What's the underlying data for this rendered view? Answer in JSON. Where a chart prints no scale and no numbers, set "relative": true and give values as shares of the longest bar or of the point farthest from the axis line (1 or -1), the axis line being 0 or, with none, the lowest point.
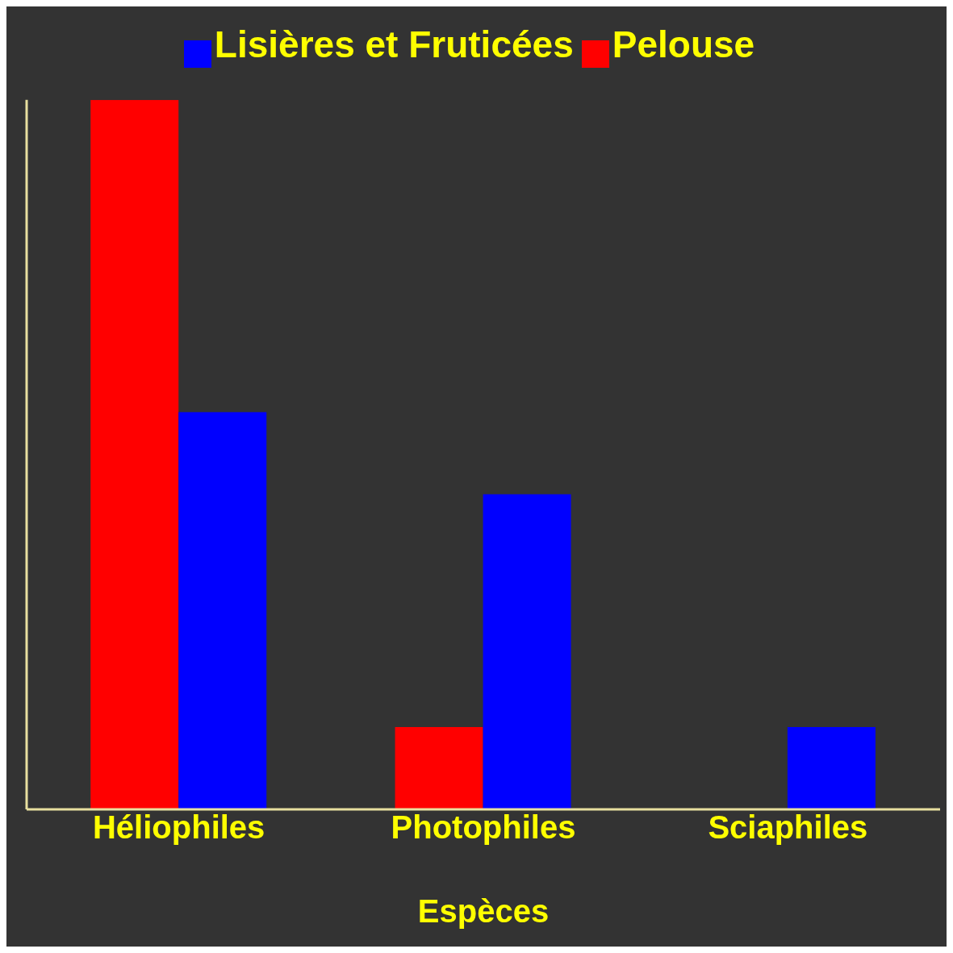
{
  "chart_data": {
    "type": "bar",
    "relative": true,
    "xlabel": "Espèces",
    "categories": [
      "Héliophiles",
      "Photophiles",
      "Sciaphiles"
    ],
    "series": [
      {
        "name": "Pelouse",
        "color": "#ff0000",
        "values": [
          1,
          0.116,
          0
        ]
      },
      {
        "name": "Lisières et Fruticées",
        "color": "#0000ff",
        "values": [
          0.56,
          0.444,
          0.116
        ]
      }
    ],
    "legend": "top",
    "grid": false
  }
}
